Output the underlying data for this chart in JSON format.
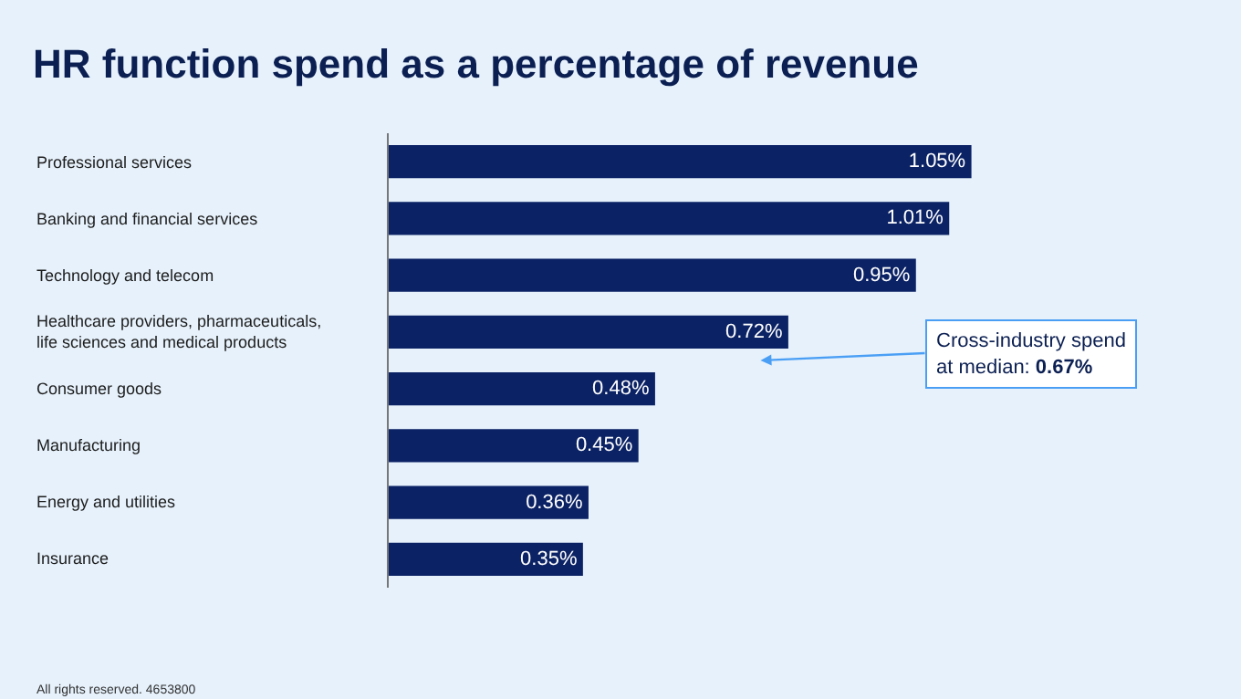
{
  "chart_data": {
    "type": "bar",
    "orientation": "horizontal",
    "title": "HR function spend as a percentage of revenue",
    "categories": [
      "Professional services",
      "Banking and financial services",
      "Technology and telecom",
      "Healthcare providers, pharmaceuticals, life sciences and medical products",
      "Consumer goods",
      "Manufacturing",
      "Energy and utilities",
      "Insurance"
    ],
    "values": [
      1.05,
      1.01,
      0.95,
      0.72,
      0.48,
      0.45,
      0.36,
      0.35
    ],
    "value_labels": [
      "1.05%",
      "1.01%",
      "0.95%",
      "0.72%",
      "0.48%",
      "0.45%",
      "0.36%",
      "0.35%"
    ],
    "color": "#0b2265",
    "annotations": [
      {
        "text": "Cross-industry spend at median: 0.67%",
        "x": 0.67
      },
      "All rights reserved. 4653800"
    ]
  }
}
